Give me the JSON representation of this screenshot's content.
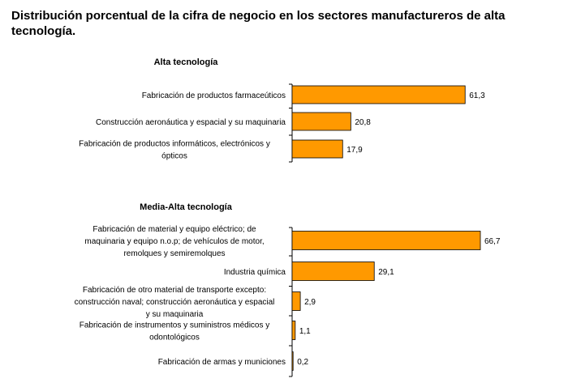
{
  "title": "Distribución porcentual de la cifra de negocio en los sectores manufactureros de alta tecnología.",
  "chart_data": [
    {
      "type": "bar",
      "orientation": "horizontal",
      "title": "Alta tecnología",
      "xlim": [
        0,
        66.7
      ],
      "color": "#FF9900",
      "categories": [
        "Fabricación de productos farmaceúticos",
        "Construcción aeronáutica y espacial y su maquinaria",
        "Fabricación de productos informáticos, electrónicos y ópticos"
      ],
      "values": [
        61.3,
        20.8,
        17.9
      ],
      "value_labels": [
        "61,3",
        "20,8",
        "17,9"
      ]
    },
    {
      "type": "bar",
      "orientation": "horizontal",
      "title": "Media-Alta tecnología",
      "xlim": [
        0,
        66.7
      ],
      "color": "#FF9900",
      "categories": [
        "Fabricación de material y equipo eléctrico; de maquinaria y equipo n.o.p; de vehículos de motor, remolques y semiremolques",
        "Industria química",
        "Fabricación de otro material de transporte excepto: construcción naval; construcción aeronáutica y espacial y su maquinaria",
        "Fabricación de instrumentos y suministros médicos y odontológicos",
        "Fabricación de armas y municiones"
      ],
      "values": [
        66.7,
        29.1,
        2.9,
        1.1,
        0.2
      ],
      "value_labels": [
        "66,7",
        "29,1",
        "2,9",
        "1,1",
        "0,2"
      ]
    }
  ]
}
